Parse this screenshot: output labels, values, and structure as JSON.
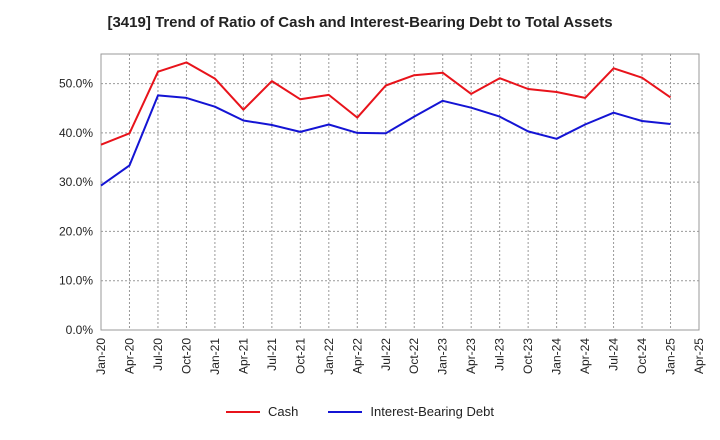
{
  "chart_data": {
    "type": "line",
    "title": "[3419]  Trend of Ratio of Cash and Interest-Bearing Debt to Total Assets",
    "xlabel": "",
    "ylabel": "",
    "x": [
      "Jan-20",
      "Apr-20",
      "Jul-20",
      "Oct-20",
      "Jan-21",
      "Apr-21",
      "Jul-21",
      "Oct-21",
      "Jan-22",
      "Apr-22",
      "Jul-22",
      "Oct-22",
      "Jan-23",
      "Apr-23",
      "Jul-23",
      "Oct-23",
      "Jan-24",
      "Apr-24",
      "Jul-24",
      "Oct-24",
      "Jan-25"
    ],
    "x_ticks": [
      "Jan-20",
      "Apr-20",
      "Jul-20",
      "Oct-20",
      "Jan-21",
      "Apr-21",
      "Jul-21",
      "Oct-21",
      "Jan-22",
      "Apr-22",
      "Jul-22",
      "Oct-22",
      "Jan-23",
      "Apr-23",
      "Jul-23",
      "Oct-23",
      "Jan-24",
      "Apr-24",
      "Jul-24",
      "Oct-24",
      "Jan-25",
      "Apr-25"
    ],
    "y_ticks": [
      "0.0%",
      "10.0%",
      "20.0%",
      "30.0%",
      "40.0%",
      "50.0%"
    ],
    "ylim": [
      0,
      56
    ],
    "grid": true,
    "legend_position": "bottom",
    "series": [
      {
        "name": "Cash",
        "color": "#e8131b",
        "values": [
          37.6,
          39.9,
          52.4,
          54.3,
          51.0,
          44.7,
          50.5,
          46.8,
          47.7,
          43.1,
          49.6,
          51.7,
          52.2,
          47.9,
          51.1,
          48.9,
          48.3,
          47.1,
          53.1,
          51.2,
          47.2
        ]
      },
      {
        "name": "Interest-Bearing Debt",
        "color": "#1414d4",
        "values": [
          29.3,
          33.4,
          47.6,
          47.1,
          45.3,
          42.5,
          41.6,
          40.2,
          41.7,
          40.0,
          39.9,
          43.3,
          46.5,
          45.1,
          43.3,
          40.3,
          38.8,
          41.7,
          44.1,
          42.4,
          41.8
        ]
      }
    ]
  }
}
